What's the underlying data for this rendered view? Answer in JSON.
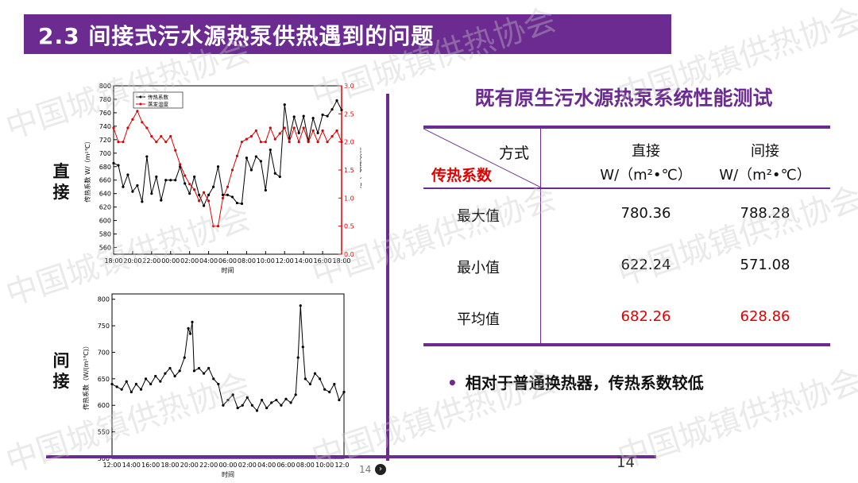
{
  "header": {
    "title": "2.3 间接式污水源热泵供热遇到的问题"
  },
  "watermark": {
    "text": "中国城镇供热协会"
  },
  "labels": {
    "direct_1": "直",
    "direct_2": "接",
    "indirect_1": "间",
    "indirect_2": "接"
  },
  "colors": {
    "accent": "#6b2b91",
    "series_black": "#000000",
    "series_red": "#e00000",
    "highlight": "#e00000"
  },
  "chart_data": [
    {
      "type": "line",
      "xlabel": "时间",
      "ylabel": "传热系数 W/（m²℃）",
      "y2label": "蒸发温度（℃）",
      "x_ticks": [
        "18:00",
        "20:00",
        "22:00",
        "00:00",
        "02:00",
        "04:00",
        "06:00",
        "08:00",
        "10:00",
        "12:00",
        "14:00",
        "16:00",
        "18:00"
      ],
      "y_ticks": [
        "560",
        "580",
        "600",
        "620",
        "640",
        "660",
        "680",
        "700",
        "720",
        "740",
        "760",
        "780",
        "800"
      ],
      "y2_ticks": [
        "0.0",
        "0.5",
        "1.0",
        "1.5",
        "2.0",
        "2.5",
        "3.0"
      ],
      "ylim": [
        550,
        800
      ],
      "y2lim": [
        0,
        3
      ],
      "xlim": [
        0,
        24
      ],
      "legend_position": "top-left",
      "series": [
        {
          "name": "传热系数",
          "axis": "left",
          "color": "#000000",
          "x": [
            0,
            0.5,
            1,
            1.5,
            2,
            2.5,
            3,
            3.5,
            4,
            4.5,
            5,
            5.5,
            6,
            6.5,
            7,
            7.5,
            8,
            8.5,
            9,
            9.5,
            10,
            10.5,
            11,
            11.5,
            12,
            12.5,
            13,
            13.5,
            14,
            14.5,
            15,
            15.5,
            16,
            16.5,
            17,
            17.5,
            18,
            18.5,
            19,
            19.5,
            20,
            20.5,
            21,
            21.5,
            22,
            22.5,
            23,
            23.5,
            24
          ],
          "values": [
            685,
            682,
            650,
            668,
            643,
            652,
            628,
            695,
            640,
            665,
            630,
            660,
            660,
            660,
            680,
            655,
            640,
            665,
            638,
            622,
            638,
            650,
            680,
            638,
            638,
            635,
            626,
            625,
            693,
            675,
            695,
            688,
            645,
            705,
            670,
            665,
            772,
            722,
            754,
            730,
            755,
            718,
            752,
            730,
            757,
            755,
            765,
            778,
            764
          ]
        },
        {
          "name": "蒸发温度",
          "axis": "right",
          "color": "#e00000",
          "x": [
            0,
            0.5,
            1,
            1.5,
            2,
            2.5,
            3,
            3.5,
            4,
            4.5,
            5,
            5.5,
            6,
            6.5,
            7,
            7.5,
            8,
            8.5,
            9,
            9.5,
            10,
            10.5,
            11,
            11.5,
            12,
            12.5,
            13,
            13.5,
            14,
            14.5,
            15,
            15.5,
            16,
            16.5,
            17,
            17.5,
            18,
            18.5,
            19,
            19.5,
            20,
            20.5,
            21,
            21.5,
            22,
            22.5,
            23,
            23.5,
            24
          ],
          "values": [
            2.25,
            2.0,
            2.0,
            2.25,
            2.4,
            2.55,
            2.35,
            2.25,
            2.1,
            2.0,
            2.1,
            2.0,
            2.1,
            1.85,
            1.6,
            1.4,
            1.25,
            1.15,
            0.95,
            1.1,
            0.95,
            0.5,
            0.5,
            1.0,
            1.2,
            1.5,
            1.75,
            2.0,
            2.05,
            2.1,
            2.2,
            2.0,
            2.0,
            2.25,
            2.05,
            2.15,
            2.25,
            2.0,
            2.25,
            2.0,
            2.25,
            2.0,
            2.2,
            2.0,
            2.2,
            2.0,
            2.1,
            2.2,
            2.0
          ]
        }
      ]
    },
    {
      "type": "line",
      "xlabel": "时间",
      "ylabel": "传热系数（W/(m²℃)）",
      "x_ticks": [
        "12:00",
        "14:00",
        "16:00",
        "18:00",
        "20:00",
        "22:00",
        "00:00",
        "02:00",
        "04:00",
        "06:00",
        "08:00",
        "10:00",
        "12:00"
      ],
      "y_ticks": [
        "500",
        "550",
        "600",
        "650",
        "700",
        "750",
        "800"
      ],
      "ylim": [
        500,
        810
      ],
      "xlim": [
        0,
        24
      ],
      "series": [
        {
          "name": "传热系数",
          "color": "#000000",
          "x": [
            0,
            0.5,
            1,
            1.5,
            2,
            2.5,
            3,
            3.5,
            4,
            4.5,
            5,
            5.5,
            6,
            6.5,
            7,
            7.5,
            7.9,
            8.1,
            8.3,
            8.5,
            9,
            9.5,
            10,
            10.5,
            11,
            11.5,
            12,
            12.5,
            13,
            13.5,
            14,
            14.5,
            15,
            15.5,
            16,
            16.5,
            17,
            17.5,
            18,
            18.5,
            19,
            19.25,
            19.5,
            19.75,
            20,
            20.5,
            21,
            21.5,
            22,
            22.5,
            23,
            23.5,
            24
          ],
          "values": [
            640,
            635,
            630,
            645,
            625,
            640,
            630,
            650,
            640,
            655,
            645,
            660,
            670,
            655,
            665,
            690,
            745,
            735,
            757,
            665,
            670,
            660,
            670,
            650,
            640,
            600,
            610,
            620,
            595,
            600,
            615,
            600,
            590,
            610,
            595,
            605,
            610,
            600,
            612,
            605,
            620,
            690,
            788,
            710,
            650,
            640,
            660,
            650,
            630,
            625,
            640,
            610,
            625
          ]
        }
      ]
    }
  ],
  "performance": {
    "title": "既有原生污水源热泵系统性能测试",
    "header_method": "方式",
    "header_param": "传热系数",
    "col_direct": "直接",
    "col_indirect": "间接",
    "unit": "W/（m²•℃）",
    "rows": [
      {
        "label": "最大值",
        "direct": "780.36",
        "indirect": "788.28"
      },
      {
        "label": "最小值",
        "direct": "622.24",
        "indirect": "571.08"
      },
      {
        "label": "平均值",
        "direct": "682.26",
        "indirect": "628.86"
      }
    ]
  },
  "bullet": {
    "text": "相对于普通换热器，传热系数较低"
  },
  "footer": {
    "page_number": "14",
    "page_small": "14"
  }
}
